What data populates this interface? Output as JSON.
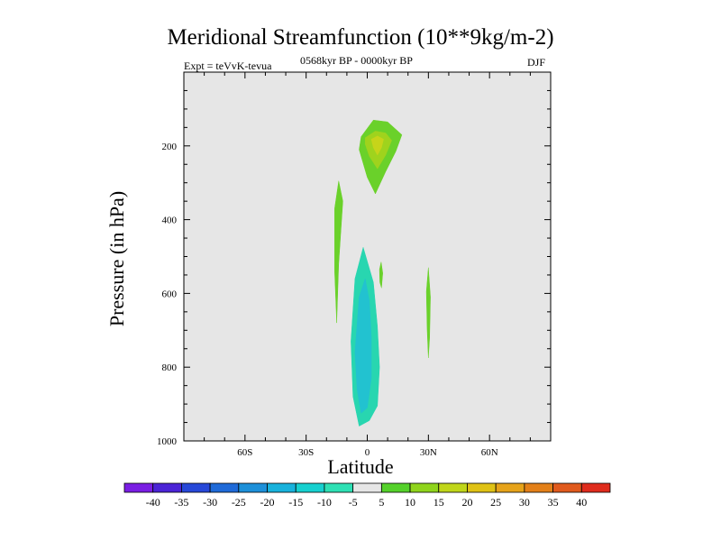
{
  "chart_data": {
    "type": "contour",
    "title": "Meridional Streamfunction (10**9kg/m-2)",
    "left_annotation": "Expt = teVvK-tevua",
    "center_annotation": "0568kyr BP - 0000kyr BP",
    "right_annotation": "DJF",
    "xlabel": "Latitude",
    "ylabel": "Pressure (in hPa)",
    "xlim": [
      -90,
      90
    ],
    "ylim": [
      1000,
      0
    ],
    "x_ticks": [
      {
        "value": -60,
        "label": "60S"
      },
      {
        "value": -30,
        "label": "30S"
      },
      {
        "value": 0,
        "label": "0"
      },
      {
        "value": 30,
        "label": "30N"
      },
      {
        "value": 60,
        "label": "60N"
      }
    ],
    "y_ticks": [
      {
        "value": 200,
        "label": "200"
      },
      {
        "value": 400,
        "label": "400"
      },
      {
        "value": 600,
        "label": "600"
      },
      {
        "value": 800,
        "label": "800"
      },
      {
        "value": 1000,
        "label": "1000"
      }
    ],
    "background_color": "#e6e6e6",
    "regions": [
      {
        "level": 5,
        "color": "#6ad12a",
        "points": [
          [
            -3,
            175
          ],
          [
            3,
            130
          ],
          [
            10,
            135
          ],
          [
            17,
            170
          ],
          [
            14,
            215
          ],
          [
            9,
            270
          ],
          [
            4,
            330
          ],
          [
            0,
            285
          ],
          [
            -4,
            210
          ]
        ]
      },
      {
        "level": 10,
        "color": "#9fd31d",
        "points": [
          [
            -1,
            178
          ],
          [
            4,
            160
          ],
          [
            9,
            165
          ],
          [
            12,
            185
          ],
          [
            9,
            225
          ],
          [
            5,
            262
          ],
          [
            1,
            228
          ],
          [
            -1,
            195
          ]
        ]
      },
      {
        "level": 15,
        "color": "#c6d41a",
        "points": [
          [
            2,
            182
          ],
          [
            5,
            173
          ],
          [
            8,
            182
          ],
          [
            7,
            205
          ],
          [
            5,
            225
          ],
          [
            3,
            205
          ]
        ]
      },
      {
        "level": 5,
        "color": "#6ad12a",
        "points": [
          [
            -16,
            370
          ],
          [
            -14,
            295
          ],
          [
            -12,
            350
          ],
          [
            -14,
            520
          ],
          [
            -15,
            680
          ],
          [
            -16,
            540
          ]
        ]
      },
      {
        "level": 5,
        "color": "#6ad12a",
        "points": [
          [
            6,
            535
          ],
          [
            6.8,
            515
          ],
          [
            7.6,
            545
          ],
          [
            7,
            585
          ],
          [
            6.2,
            570
          ]
        ]
      },
      {
        "level": 5,
        "color": "#6ad12a",
        "points": [
          [
            29,
            595
          ],
          [
            30,
            530
          ],
          [
            31,
            610
          ],
          [
            30.6,
            720
          ],
          [
            30,
            775
          ],
          [
            29.4,
            700
          ]
        ]
      },
      {
        "level": -5,
        "color": "#28d6b0",
        "points": [
          [
            -8,
            730
          ],
          [
            -6,
            560
          ],
          [
            -2,
            475
          ],
          [
            3,
            570
          ],
          [
            5,
            690
          ],
          [
            6,
            800
          ],
          [
            5,
            905
          ],
          [
            1,
            945
          ],
          [
            -4,
            960
          ],
          [
            -7,
            880
          ]
        ]
      },
      {
        "level": -10,
        "color": "#22c2d0",
        "points": [
          [
            -6,
            760
          ],
          [
            -4,
            610
          ],
          [
            -1,
            560
          ],
          [
            1,
            620
          ],
          [
            2,
            720
          ],
          [
            2,
            830
          ],
          [
            0,
            910
          ],
          [
            -3,
            925
          ],
          [
            -5,
            860
          ]
        ]
      }
    ],
    "colorbar": {
      "levels": [
        -40,
        -35,
        -30,
        -25,
        -20,
        -15,
        -10,
        -5,
        5,
        10,
        15,
        20,
        25,
        30,
        35,
        40
      ],
      "colors": [
        "#7a1ee3",
        "#4b24d6",
        "#2748d8",
        "#1f6ad8",
        "#1d90d9",
        "#18b2dc",
        "#16d0cf",
        "#2ee0b4",
        "#e6e6e6",
        "#55d12b",
        "#8fd41c",
        "#c0d61a",
        "#dfc215",
        "#e6a31a",
        "#e38019",
        "#e05a1d",
        "#df2c1d"
      ]
    }
  }
}
